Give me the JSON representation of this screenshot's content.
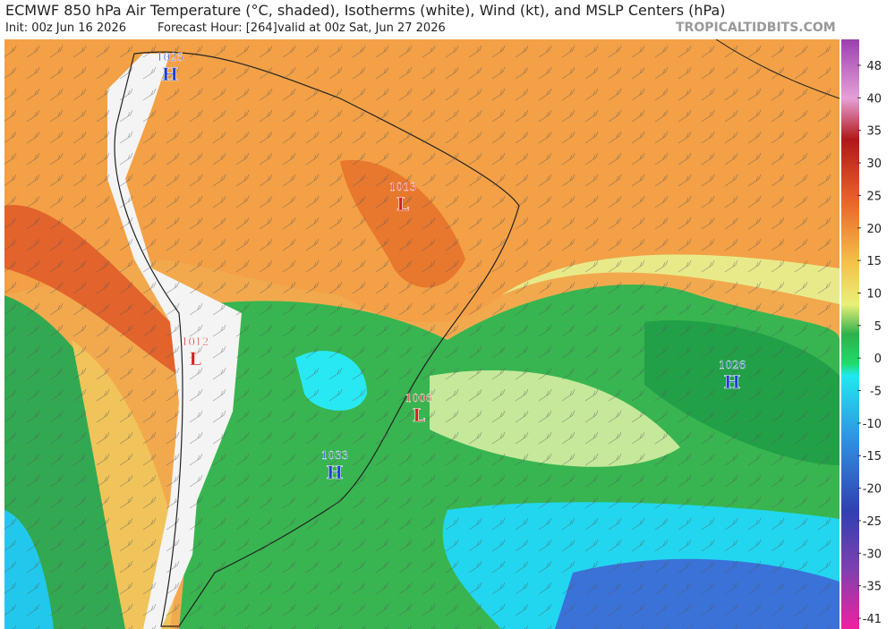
{
  "header": {
    "title": "ECMWF 850 hPa Air Temperature (°C, shaded), Isotherms (white), Wind (kt), and MSLP Centers (hPa)",
    "init": "Init: 00z Jun 16 2026",
    "forecast_hour": "Forecast Hour: [264]",
    "valid": "valid at 00z Sat, Jun 27 2026",
    "source": "TROPICALTIDBITS.COM"
  },
  "pressure_centers": [
    {
      "pressure": 1025,
      "type": "H"
    },
    {
      "pressure": 1013,
      "type": "L"
    },
    {
      "pressure": 1012,
      "type": "L"
    },
    {
      "pressure": 1006,
      "type": "L"
    },
    {
      "pressure": 1026,
      "type": "H"
    },
    {
      "pressure": 1033,
      "type": "H"
    }
  ],
  "colorbar": {
    "ticks": [
      48,
      40,
      35,
      30,
      25,
      20,
      15,
      10,
      5,
      0,
      -5,
      -10,
      -15,
      -20,
      -25,
      -30,
      -35,
      -41
    ]
  }
}
